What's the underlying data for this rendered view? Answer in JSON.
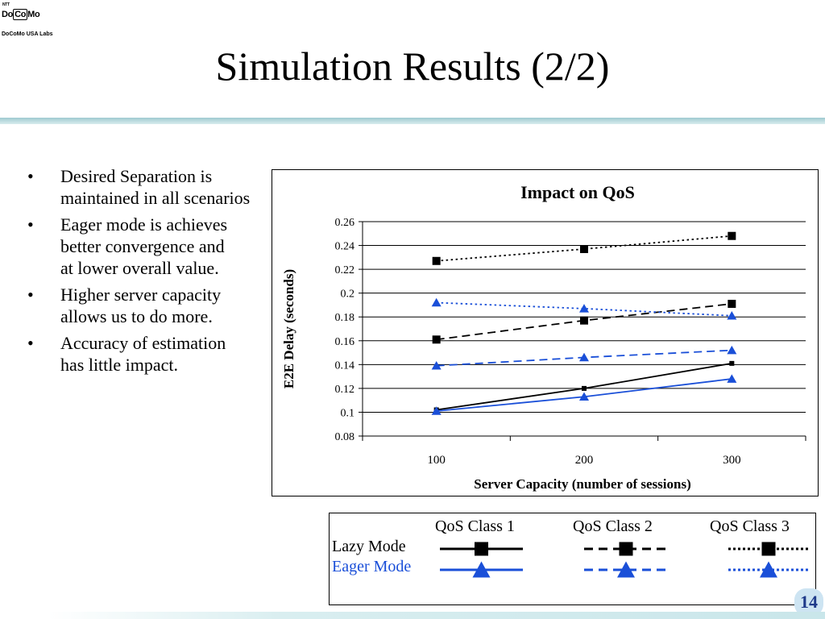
{
  "logo": {
    "ntt": "NTT",
    "do": "Do",
    "co": "Co",
    "mo": "Mo",
    "labs": "DoCoMo USA Labs"
  },
  "slide_title": "Simulation Results (2/2)",
  "bullets": [
    "Desired Separation is maintained in all scenarios",
    "Eager mode is achieves\nbetter convergence and\nat lower overall value.",
    "Higher server capacity\nallows us to do more.",
    "Accuracy of estimation\nhas little impact."
  ],
  "chart_data": {
    "type": "line",
    "title": "Impact on QoS",
    "xlabel": "Server Capacity (number of sessions)",
    "ylabel": "E2E Delay (seconds)",
    "x": [
      100,
      200,
      300
    ],
    "ylim": [
      0.08,
      0.26
    ],
    "yticks": [
      "0.08",
      "0.1",
      "0.12",
      "0.14",
      "0.16",
      "0.18",
      "0.2",
      "0.22",
      "0.24",
      "0.26"
    ],
    "xticks": [
      "100",
      "200",
      "300"
    ],
    "grid": true,
    "series": [
      {
        "mode": "lazy",
        "qos_class": 1,
        "line_style": "solid",
        "color": "#000000",
        "marker": "square",
        "values": [
          0.102,
          0.12,
          0.141
        ]
      },
      {
        "mode": "eager",
        "qos_class": 1,
        "line_style": "solid",
        "color": "#1a4fd8",
        "marker": "triangle",
        "values": [
          0.101,
          0.113,
          0.128
        ]
      },
      {
        "mode": "lazy",
        "qos_class": 2,
        "line_style": "dashed",
        "color": "#000000",
        "marker": "square",
        "values": [
          0.161,
          0.177,
          0.191
        ]
      },
      {
        "mode": "eager",
        "qos_class": 2,
        "line_style": "dashed",
        "color": "#1a4fd8",
        "marker": "triangle",
        "values": [
          0.139,
          0.146,
          0.152
        ]
      },
      {
        "mode": "lazy",
        "qos_class": 3,
        "line_style": "dotted",
        "color": "#000000",
        "marker": "square",
        "values": [
          0.227,
          0.237,
          0.248
        ]
      },
      {
        "mode": "eager",
        "qos_class": 3,
        "line_style": "dotted",
        "color": "#1a4fd8",
        "marker": "triangle",
        "values": [
          0.192,
          0.187,
          0.181
        ]
      }
    ]
  },
  "legend": {
    "columns": [
      "QoS Class 1",
      "QoS Class 2",
      "QoS Class 3"
    ],
    "rows": [
      "Lazy Mode",
      "Eager Mode"
    ],
    "row_colors": [
      "#000000",
      "#1a4fd8"
    ]
  },
  "page_number": "14"
}
